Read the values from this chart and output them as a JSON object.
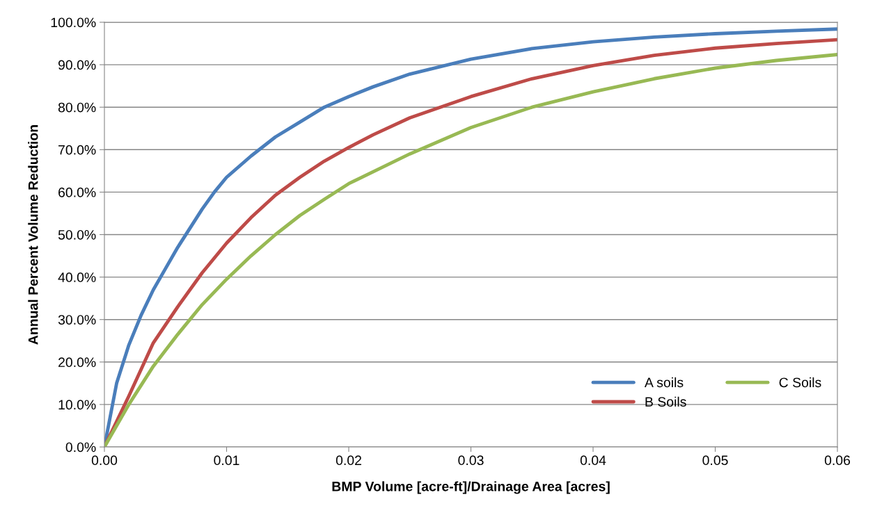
{
  "chart_data": {
    "type": "line",
    "xlabel": "BMP Volume [acre-ft]/Drainage Area [acres]",
    "ylabel": "Annual Percent Volume Reduction",
    "xlim": [
      0,
      0.06
    ],
    "xticks": [
      {
        "value": 0,
        "label": "0.00"
      },
      {
        "value": 0.01,
        "label": "0.01"
      },
      {
        "value": 0.02,
        "label": "0.02"
      },
      {
        "value": 0.03,
        "label": "0.03"
      },
      {
        "value": 0.04,
        "label": "0.04"
      },
      {
        "value": 0.05,
        "label": "0.05"
      },
      {
        "value": 0.06,
        "label": "0.06"
      }
    ],
    "ylim": [
      0,
      100
    ],
    "yticks": [
      {
        "value": 0,
        "label": "0.0%"
      },
      {
        "value": 10,
        "label": "10.0%"
      },
      {
        "value": 20,
        "label": "20.0%"
      },
      {
        "value": 30,
        "label": "30.0%"
      },
      {
        "value": 40,
        "label": "40.0%"
      },
      {
        "value": 50,
        "label": "50.0%"
      },
      {
        "value": 60,
        "label": "60.0%"
      },
      {
        "value": 70,
        "label": "70.0%"
      },
      {
        "value": 80,
        "label": "80.0%"
      },
      {
        "value": 90,
        "label": "90.0%"
      },
      {
        "value": 100,
        "label": "100.0%"
      }
    ],
    "grid": "y",
    "legend": "bottom right",
    "marker": "none",
    "line_style": "solid",
    "series": [
      {
        "name": "A soils",
        "color": "#4a7ebb",
        "x": [
          0,
          0.001,
          0.002,
          0.003,
          0.004,
          0.005,
          0.006,
          0.008,
          0.009,
          0.01,
          0.012,
          0.014,
          0.016,
          0.018,
          0.02,
          0.022,
          0.025,
          0.03,
          0.035,
          0.04,
          0.045,
          0.05,
          0.055,
          0.06
        ],
        "values": [
          0,
          15,
          24,
          31,
          37,
          42,
          47,
          56,
          60,
          63.5,
          68.5,
          73,
          76.5,
          80,
          82.5,
          84.8,
          87.8,
          91.3,
          93.8,
          95.4,
          96.5,
          97.3,
          97.9,
          98.4
        ]
      },
      {
        "name": "B Soils",
        "color": "#be4b48",
        "x": [
          0,
          0.002,
          0.004,
          0.006,
          0.008,
          0.01,
          0.012,
          0.014,
          0.016,
          0.018,
          0.02,
          0.022,
          0.025,
          0.03,
          0.035,
          0.04,
          0.045,
          0.05,
          0.055,
          0.06
        ],
        "values": [
          0,
          12,
          24.5,
          33,
          41,
          48,
          54,
          59.3,
          63.5,
          67.3,
          70.5,
          73.5,
          77.5,
          82.5,
          86.7,
          89.8,
          92.2,
          93.9,
          95,
          95.9
        ]
      },
      {
        "name": "C Soils",
        "color": "#98b954",
        "x": [
          0,
          0.002,
          0.004,
          0.006,
          0.008,
          0.01,
          0.012,
          0.014,
          0.016,
          0.018,
          0.02,
          0.025,
          0.03,
          0.035,
          0.04,
          0.045,
          0.05,
          0.055,
          0.06
        ],
        "values": [
          0,
          10,
          19,
          26.5,
          33.5,
          39.5,
          45,
          50,
          54.5,
          58.3,
          62,
          69,
          75.2,
          80,
          83.6,
          86.7,
          89.2,
          91,
          92.4
        ]
      }
    ]
  }
}
